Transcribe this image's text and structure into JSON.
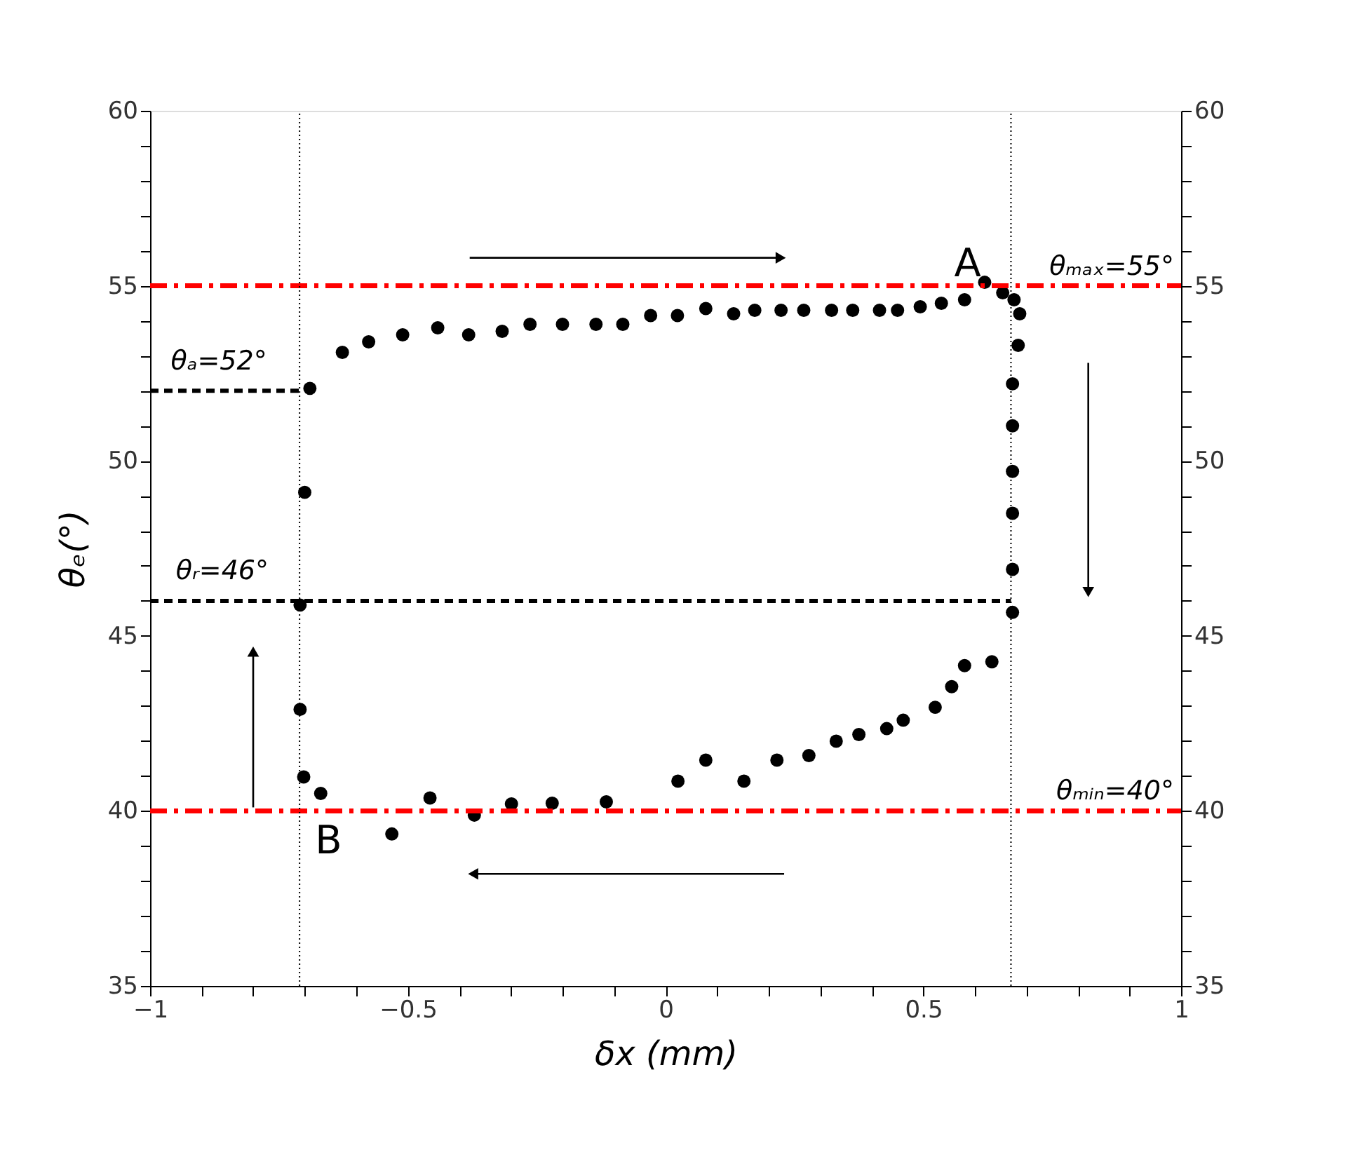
{
  "chart_data": {
    "type": "scatter",
    "xlabel": "δx (mm)",
    "ylabel": "θₑ(°)",
    "xlim": [
      -1,
      1
    ],
    "xticks": [
      {
        "value": -1,
        "label": "−1"
      },
      {
        "value": -0.9,
        "label": null
      },
      {
        "value": -0.8,
        "label": null
      },
      {
        "value": -0.7,
        "label": null
      },
      {
        "value": -0.6,
        "label": null
      },
      {
        "value": -0.5,
        "label": "−0.5"
      },
      {
        "value": -0.4,
        "label": null
      },
      {
        "value": -0.3,
        "label": null
      },
      {
        "value": -0.2,
        "label": null
      },
      {
        "value": -0.1,
        "label": null
      },
      0,
      {
        "value": 0.1,
        "label": null
      },
      {
        "value": 0.2,
        "label": null
      },
      {
        "value": 0.3,
        "label": null
      },
      {
        "value": 0.4,
        "label": null
      },
      0.5,
      {
        "value": 0.6,
        "label": null
      },
      {
        "value": 0.7,
        "label": null
      },
      {
        "value": 0.8,
        "label": null
      },
      {
        "value": 0.9,
        "label": null
      },
      1
    ],
    "ylim": [
      35,
      60
    ],
    "yticks": [
      35,
      {
        "value": 36,
        "label": null
      },
      {
        "value": 37,
        "label": null
      },
      {
        "value": 38,
        "label": null
      },
      {
        "value": 39,
        "label": null
      },
      40,
      {
        "value": 41,
        "label": null
      },
      {
        "value": 42,
        "label": null
      },
      {
        "value": 43,
        "label": null
      },
      {
        "value": 44,
        "label": null
      },
      45,
      {
        "value": 46,
        "label": null
      },
      {
        "value": 47,
        "label": null
      },
      {
        "value": 48,
        "label": null
      },
      {
        "value": 49,
        "label": null
      },
      50,
      {
        "value": 51,
        "label": null
      },
      {
        "value": 52,
        "label": null
      },
      {
        "value": 53,
        "label": null
      },
      {
        "value": 54,
        "label": null
      },
      55,
      {
        "value": 56,
        "label": null
      },
      {
        "value": 57,
        "label": null
      },
      {
        "value": 58,
        "label": null
      },
      {
        "value": 59,
        "label": null
      },
      60
    ],
    "y2lim": [
      35,
      60
    ],
    "y2ticks": [
      35,
      {
        "value": 36,
        "label": null
      },
      {
        "value": 37,
        "label": null
      },
      {
        "value": 38,
        "label": null
      },
      {
        "value": 39,
        "label": null
      },
      40,
      {
        "value": 41,
        "label": null
      },
      {
        "value": 42,
        "label": null
      },
      {
        "value": 43,
        "label": null
      },
      {
        "value": 44,
        "label": null
      },
      45,
      {
        "value": 46,
        "label": null
      },
      {
        "value": 47,
        "label": null
      },
      {
        "value": 48,
        "label": null
      },
      {
        "value": 49,
        "label": null
      },
      50,
      {
        "value": 51,
        "label": null
      },
      {
        "value": 52,
        "label": null
      },
      {
        "value": 53,
        "label": null
      },
      {
        "value": 54,
        "label": null
      },
      55,
      {
        "value": 56,
        "label": null
      },
      {
        "value": 57,
        "label": null
      },
      {
        "value": 58,
        "label": null
      },
      {
        "value": 59,
        "label": null
      },
      60
    ],
    "grid": false,
    "series": [
      {
        "color": "#000000",
        "marker": "circle",
        "x": [
          -0.69,
          -0.627,
          -0.576,
          -0.51,
          -0.442,
          -0.382,
          -0.317,
          -0.263,
          -0.2,
          -0.135,
          -0.083,
          -0.029,
          0.023,
          0.078,
          0.132,
          0.173,
          0.224,
          0.268,
          0.322,
          0.363,
          0.415,
          0.45,
          0.494,
          0.535,
          0.58,
          0.619,
          0.654,
          0.676,
          0.687,
          0.684,
          0.673,
          0.673,
          0.673,
          0.673,
          0.673,
          0.673,
          0.633,
          0.58,
          0.555,
          0.523,
          0.461,
          0.429,
          0.375,
          0.331,
          0.278,
          0.216,
          0.152,
          0.078,
          0.024,
          -0.115,
          -0.22,
          -0.299,
          -0.371,
          -0.457,
          -0.531,
          -0.669,
          -0.702,
          -0.709,
          -0.709,
          -0.7
        ],
        "values": [
          52.07,
          53.1,
          53.4,
          53.6,
          53.8,
          53.6,
          53.7,
          53.9,
          53.9,
          53.9,
          53.9,
          54.15,
          54.15,
          54.35,
          54.2,
          54.3,
          54.3,
          54.3,
          54.3,
          54.3,
          54.3,
          54.3,
          54.4,
          54.5,
          54.6,
          55.1,
          54.8,
          54.6,
          54.2,
          53.3,
          52.2,
          51.0,
          49.7,
          48.5,
          46.9,
          45.67,
          44.26,
          44.15,
          43.55,
          42.96,
          42.59,
          42.35,
          42.18,
          41.99,
          41.58,
          41.45,
          40.85,
          41.45,
          40.85,
          40.26,
          40.22,
          40.2,
          39.88,
          40.37,
          39.34,
          40.5,
          40.97,
          42.9,
          45.88,
          49.1
        ]
      },
      {
        "type": "line",
        "color": "#000000",
        "line_style": "dashed",
        "x": [
          -1,
          -0.71
        ],
        "values": [
          52,
          52
        ]
      },
      {
        "type": "line",
        "color": "#000000",
        "line_style": "dashed",
        "x": [
          -1,
          0.67
        ],
        "values": [
          46,
          46
        ]
      }
    ],
    "ref_lines": [
      {
        "axis": "y",
        "value": 55,
        "label": "θₘₐₓ=55°",
        "color": "#ff0000",
        "line_style": "dashdot"
      },
      {
        "axis": "y",
        "value": 40,
        "label": "θₘᵢₙ=40°",
        "color": "#ff0000",
        "line_style": "dashdot"
      },
      {
        "axis": "x",
        "value": -0.71,
        "color": "#000000",
        "line_style": "dotted"
      },
      {
        "axis": "x",
        "value": 0.67,
        "color": "#000000",
        "line_style": "dotted"
      }
    ],
    "annotations": [
      "A",
      "B",
      "θₐ=52°",
      "θᵣ=46°"
    ]
  }
}
